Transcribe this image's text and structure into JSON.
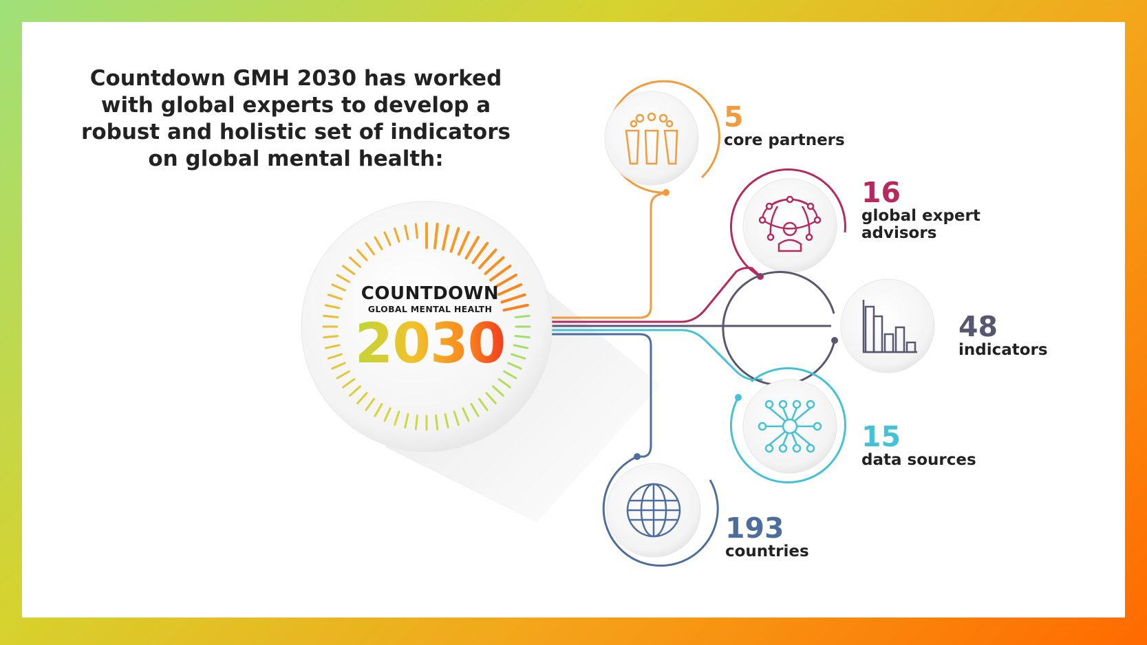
{
  "headline": "Countdown GMH 2030 has worked with global experts to develop a robust and holistic set of indicators on global mental health:",
  "logo": {
    "line1": "COUNTDOWN",
    "line2": "GLOBAL MENTAL HEALTH",
    "year": "2030"
  },
  "stats": [
    {
      "value": "5",
      "label": "core partners",
      "icon": "people-group-icon",
      "color": "#f39a3a"
    },
    {
      "value": "16",
      "label": "global expert advisors",
      "icon": "network-globe-person-icon",
      "color": "#b7295d"
    },
    {
      "value": "48",
      "label": "indicators",
      "icon": "bar-chart-icon",
      "color": "#585770"
    },
    {
      "value": "15",
      "label": "data sources",
      "icon": "data-nodes-icon",
      "color": "#43c1d6"
    },
    {
      "value": "193",
      "label": "countries",
      "icon": "globe-icon",
      "color": "#4d6e9c"
    }
  ],
  "colors": {
    "frame_gradient": [
      "#9fe07a",
      "#d6d22e",
      "#f4a51a",
      "#ff6a00"
    ]
  }
}
